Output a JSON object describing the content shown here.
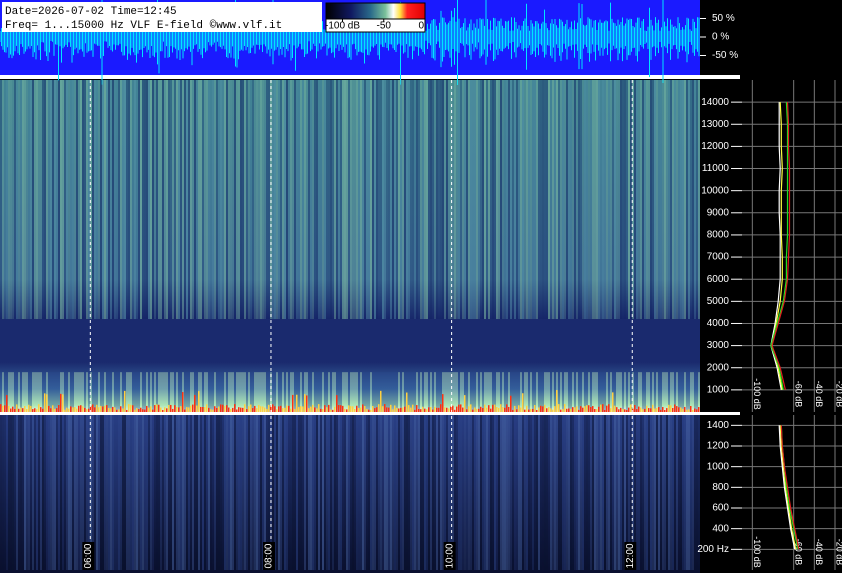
{
  "header": {
    "line1": "Date=2026-07-02 Time=12:45",
    "line2": "Freq= 1...15000 Hz   VLF E-field ©www.vlf.it"
  },
  "chart_data": [
    {
      "type": "waveform",
      "color": "#00e5ff",
      "ylim": [
        -100,
        100
      ],
      "yticks": [
        {
          "value": 50,
          "label": "50 %"
        },
        {
          "value": 0,
          "label": "0 %"
        },
        {
          "value": -50,
          "label": "-50 %"
        }
      ]
    },
    {
      "type": "colorbar",
      "zlim": [
        -120,
        0
      ],
      "zticks": [
        {
          "value": -100,
          "label": "-100 dB"
        },
        -50,
        0
      ]
    },
    {
      "type": "spectrogram",
      "xlim": [
        5,
        12.75
      ],
      "ylim": [
        0,
        15000
      ],
      "yticks": [
        1000,
        2000,
        3000,
        4000,
        5000,
        6000,
        7000,
        8000,
        9000,
        10000,
        11000,
        12000,
        13000,
        14000
      ]
    },
    {
      "type": "spectrogram",
      "xlim": [
        5,
        12.75
      ],
      "ylim": [
        0,
        1500
      ],
      "yticks": [
        {
          "value": 200,
          "label": "200 Hz"
        },
        400,
        600,
        800,
        1000,
        1200,
        1400
      ],
      "xticks": [
        {
          "value": 6,
          "label": "06:00"
        },
        {
          "value": 8,
          "label": "08:00"
        },
        {
          "value": 10,
          "label": "10:00"
        },
        {
          "value": 12,
          "label": "12:00"
        }
      ]
    },
    {
      "type": "spectrum",
      "xlim": [
        -110,
        -20
      ],
      "ylim": [
        0,
        15000
      ],
      "xticks": [
        {
          "value": -100,
          "label": "-100 dB"
        },
        {
          "value": -60,
          "label": "-60 dB"
        },
        {
          "value": -40,
          "label": "-40 dB"
        },
        {
          "value": -20,
          "label": "-20 dB"
        }
      ],
      "y": [
        1000,
        2000,
        3000,
        4000,
        5000,
        6000,
        7000,
        8000,
        9000,
        10000,
        11000,
        12000,
        13000,
        14000
      ],
      "series": [
        {
          "color": "#ffffff",
          "values": [
            -72,
            -76,
            -82,
            -78,
            -75,
            -73,
            -73,
            -73,
            -74,
            -74,
            -73,
            -74,
            -74,
            -74
          ]
        },
        {
          "color": "#ffff40",
          "values": [
            -71,
            -75,
            -81,
            -77,
            -73,
            -71,
            -71,
            -72,
            -72,
            -72,
            -71,
            -72,
            -72,
            -73
          ]
        },
        {
          "color": "#20e020",
          "values": [
            -70,
            -74,
            -82,
            -76,
            -70,
            -67,
            -67,
            -66,
            -66,
            -66,
            -66,
            -66,
            -66,
            -67
          ]
        },
        {
          "color": "#e02020",
          "values": [
            -68,
            -73,
            -81,
            -75,
            -69,
            -66,
            -65,
            -64,
            -64,
            -64,
            -64,
            -65,
            -65,
            -66
          ]
        }
      ]
    },
    {
      "type": "spectrum",
      "xlim": [
        -110,
        -20
      ],
      "ylim": [
        0,
        1500
      ],
      "xticks": [
        {
          "value": -100,
          "label": "-100 dB"
        },
        {
          "value": -60,
          "label": "-60 dB"
        },
        {
          "value": -40,
          "label": "-40 dB"
        },
        {
          "value": -20,
          "label": "-20 dB"
        }
      ],
      "y": [
        200,
        400,
        600,
        800,
        1000,
        1200,
        1400
      ],
      "series": [
        {
          "color": "#ffff40",
          "values": [
            -58,
            -62,
            -65,
            -68,
            -70,
            -72,
            -73
          ]
        },
        {
          "color": "#ffffff",
          "values": [
            -59,
            -63,
            -66,
            -69,
            -71,
            -73,
            -74
          ]
        },
        {
          "color": "#20e020",
          "values": [
            -56,
            -60,
            -64,
            -67,
            -69,
            -71,
            -72
          ]
        },
        {
          "color": "#e02020",
          "values": [
            -55,
            -59,
            -63,
            -66,
            -69,
            -71,
            -72
          ]
        }
      ]
    }
  ]
}
